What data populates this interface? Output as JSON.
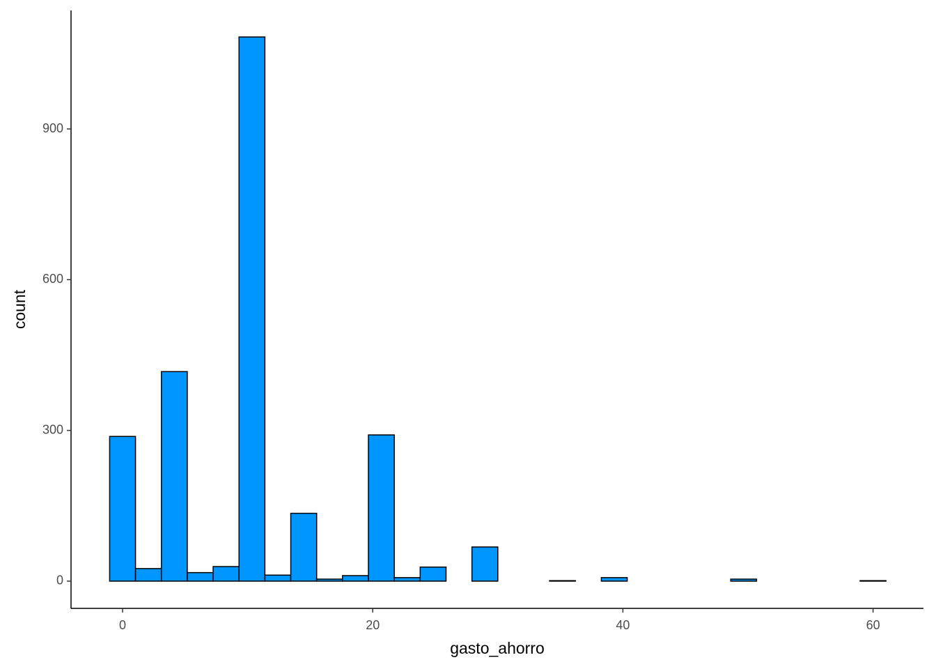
{
  "chart_data": {
    "type": "histogram",
    "x_label": "gasto_ahorro",
    "y_label": "count",
    "bins": [
      -1.034,
      1.034,
      3.103,
      5.172,
      7.241,
      9.31,
      11.379,
      13.448,
      15.517,
      17.586,
      19.655,
      21.724,
      23.793,
      25.862,
      27.931,
      30.0,
      32.069,
      34.138,
      36.207,
      38.276,
      40.345,
      42.414,
      44.483,
      46.552,
      48.621,
      50.69,
      52.759,
      54.828,
      56.897,
      58.966,
      61.034
    ],
    "values": [
      288,
      25,
      417,
      17,
      29,
      1083,
      12,
      135,
      4,
      11,
      291,
      7,
      28,
      0,
      68,
      0,
      0,
      1,
      0,
      7,
      0,
      0,
      0,
      0,
      4,
      0,
      0,
      0,
      0,
      1
    ],
    "color": "#0096FF",
    "xlim": [
      -4.12,
      64.03
    ],
    "xticks": [
      0,
      20,
      40,
      60
    ],
    "ylim": [
      -54.2,
      1135.8
    ],
    "yticks": [
      0,
      300,
      600,
      900
    ],
    "grid": false
  }
}
